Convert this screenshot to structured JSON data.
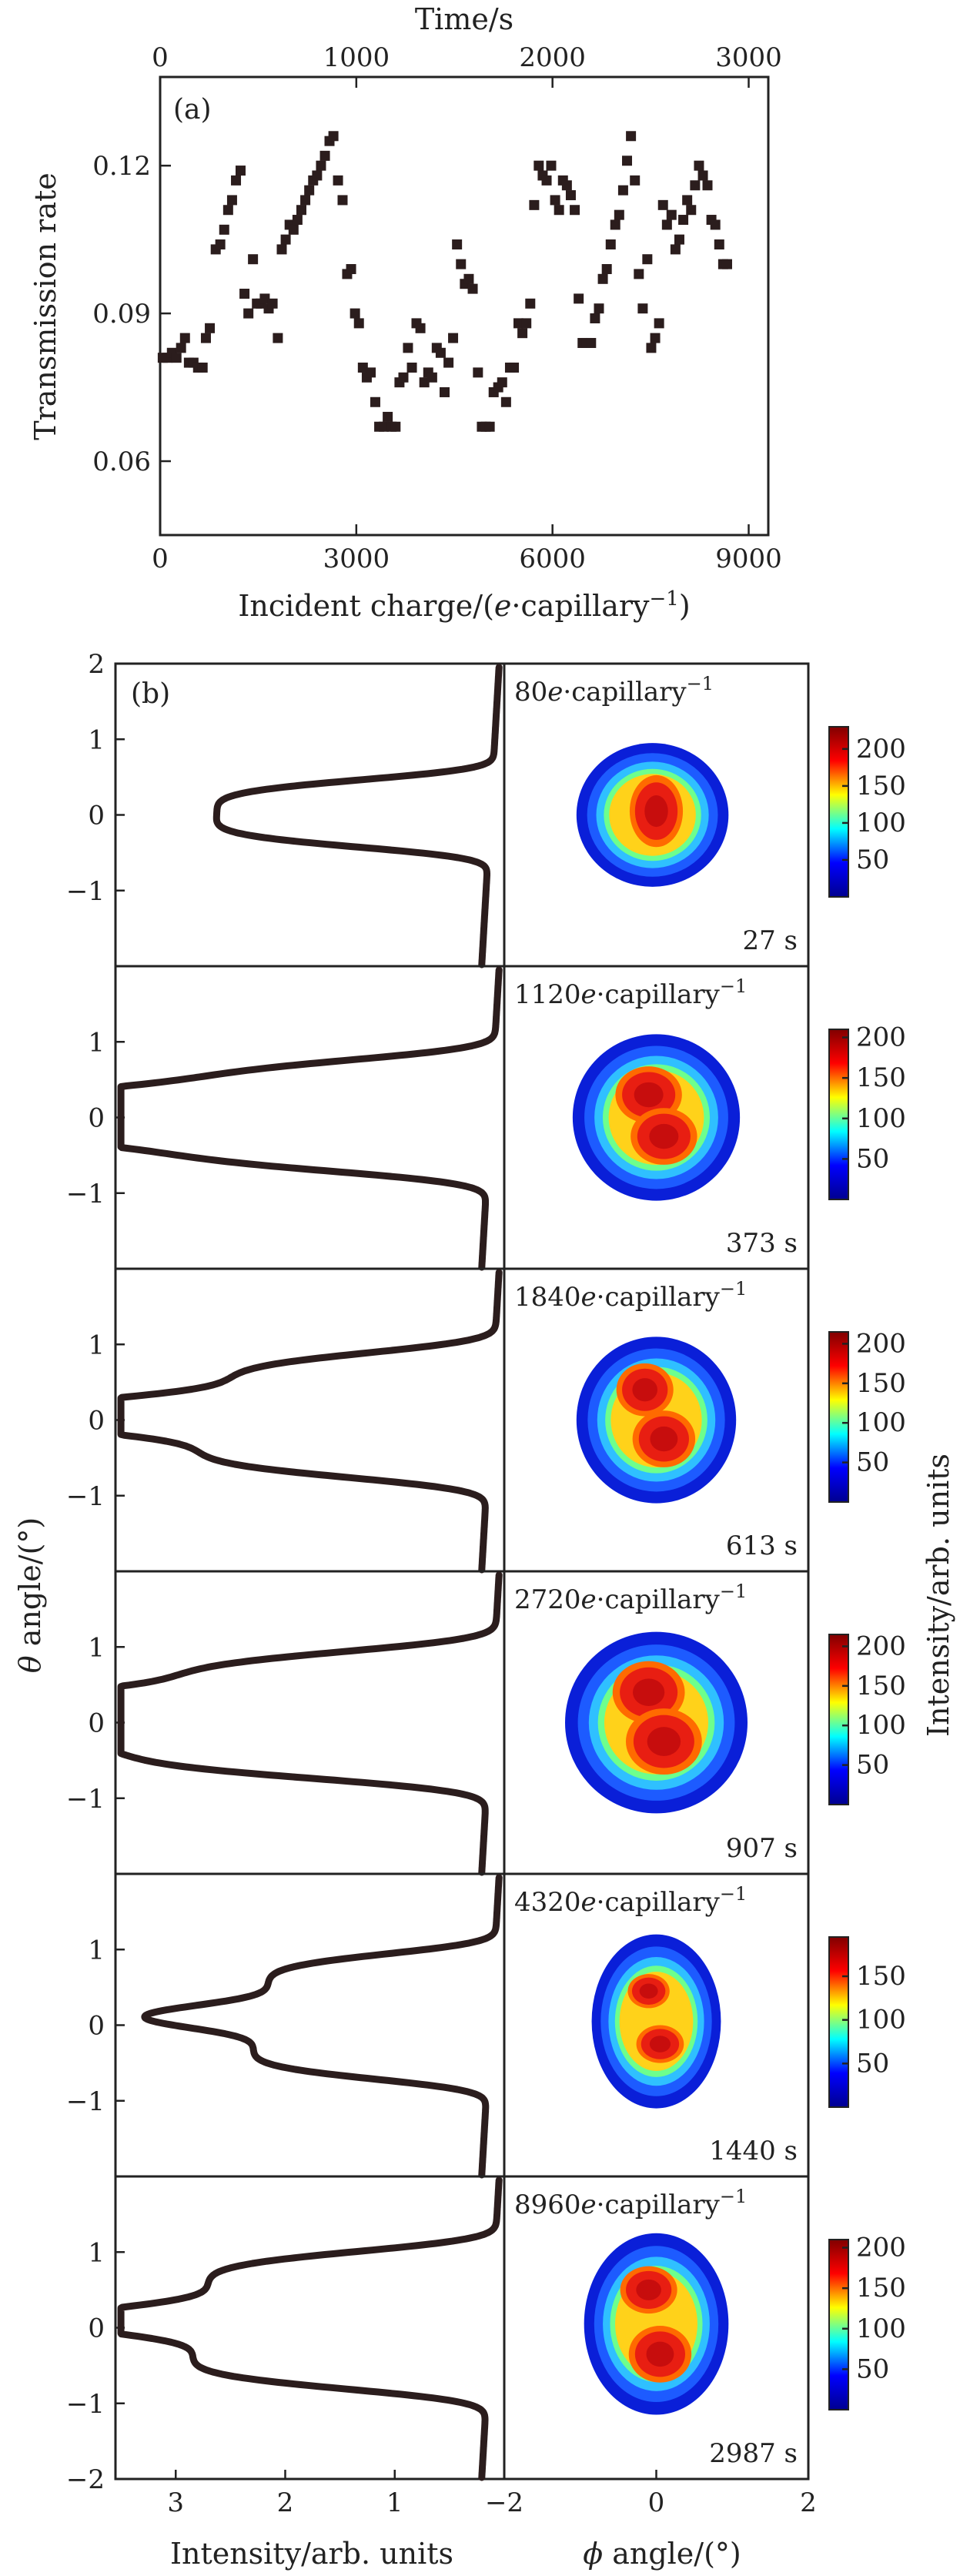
{
  "chart_data": [
    {
      "panel": "(a)",
      "type": "scatter",
      "xlabel": "Incident charge/(e·capillary⁻¹)",
      "x2label": "Time/s",
      "ylabel": "Transmission rate",
      "xlim": [
        0,
        9300
      ],
      "x2lim": [
        0,
        3100
      ],
      "ylim": [
        0.045,
        0.138
      ],
      "xticks": [
        "0",
        "3000",
        "6000",
        "9000"
      ],
      "x2ticks": [
        "0",
        "1000",
        "2000",
        "3000"
      ],
      "yticks": [
        "0.06",
        "0.09",
        "0.12"
      ],
      "marker_color": "#2b1d1d",
      "points": [
        [
          40,
          0.081
        ],
        [
          110,
          0.081
        ],
        [
          180,
          0.082
        ],
        [
          250,
          0.081
        ],
        [
          320,
          0.083
        ],
        [
          380,
          0.085
        ],
        [
          440,
          0.08
        ],
        [
          510,
          0.08
        ],
        [
          580,
          0.079
        ],
        [
          650,
          0.079
        ],
        [
          700,
          0.085
        ],
        [
          760,
          0.087
        ],
        [
          850,
          0.103
        ],
        [
          920,
          0.104
        ],
        [
          980,
          0.107
        ],
        [
          1040,
          0.111
        ],
        [
          1100,
          0.113
        ],
        [
          1160,
          0.117
        ],
        [
          1230,
          0.119
        ],
        [
          1290,
          0.094
        ],
        [
          1350,
          0.09
        ],
        [
          1420,
          0.101
        ],
        [
          1480,
          0.092
        ],
        [
          1540,
          0.092
        ],
        [
          1600,
          0.093
        ],
        [
          1660,
          0.091
        ],
        [
          1720,
          0.092
        ],
        [
          1800,
          0.085
        ],
        [
          1860,
          0.103
        ],
        [
          1920,
          0.105
        ],
        [
          1980,
          0.108
        ],
        [
          2040,
          0.107
        ],
        [
          2100,
          0.109
        ],
        [
          2160,
          0.111
        ],
        [
          2220,
          0.113
        ],
        [
          2280,
          0.115
        ],
        [
          2340,
          0.117
        ],
        [
          2400,
          0.118
        ],
        [
          2460,
          0.12
        ],
        [
          2520,
          0.122
        ],
        [
          2590,
          0.125
        ],
        [
          2650,
          0.126
        ],
        [
          2720,
          0.117
        ],
        [
          2790,
          0.113
        ],
        [
          2860,
          0.098
        ],
        [
          2920,
          0.099
        ],
        [
          2980,
          0.09
        ],
        [
          3040,
          0.088
        ],
        [
          3100,
          0.079
        ],
        [
          3160,
          0.077
        ],
        [
          3220,
          0.078
        ],
        [
          3290,
          0.072
        ],
        [
          3350,
          0.067
        ],
        [
          3420,
          0.067
        ],
        [
          3480,
          0.069
        ],
        [
          3540,
          0.067
        ],
        [
          3600,
          0.067
        ],
        [
          3660,
          0.076
        ],
        [
          3720,
          0.077
        ],
        [
          3790,
          0.083
        ],
        [
          3850,
          0.079
        ],
        [
          3920,
          0.088
        ],
        [
          3980,
          0.087
        ],
        [
          4040,
          0.076
        ],
        [
          4100,
          0.078
        ],
        [
          4160,
          0.077
        ],
        [
          4230,
          0.083
        ],
        [
          4290,
          0.082
        ],
        [
          4350,
          0.074
        ],
        [
          4410,
          0.08
        ],
        [
          4480,
          0.085
        ],
        [
          4540,
          0.104
        ],
        [
          4600,
          0.1
        ],
        [
          4660,
          0.096
        ],
        [
          4720,
          0.097
        ],
        [
          4780,
          0.095
        ],
        [
          4860,
          0.078
        ],
        [
          4920,
          0.067
        ],
        [
          4980,
          0.067
        ],
        [
          5040,
          0.067
        ],
        [
          5100,
          0.074
        ],
        [
          5170,
          0.075
        ],
        [
          5230,
          0.076
        ],
        [
          5290,
          0.072
        ],
        [
          5350,
          0.079
        ],
        [
          5410,
          0.079
        ],
        [
          5480,
          0.088
        ],
        [
          5540,
          0.086
        ],
        [
          5600,
          0.088
        ],
        [
          5660,
          0.092
        ],
        [
          5720,
          0.112
        ],
        [
          5790,
          0.12
        ],
        [
          5850,
          0.118
        ],
        [
          5910,
          0.117
        ],
        [
          5980,
          0.12
        ],
        [
          6040,
          0.113
        ],
        [
          6100,
          0.111
        ],
        [
          6160,
          0.117
        ],
        [
          6220,
          0.116
        ],
        [
          6280,
          0.114
        ],
        [
          6340,
          0.111
        ],
        [
          6400,
          0.093
        ],
        [
          6460,
          0.084
        ],
        [
          6520,
          0.084
        ],
        [
          6590,
          0.084
        ],
        [
          6650,
          0.089
        ],
        [
          6710,
          0.091
        ],
        [
          6770,
          0.097
        ],
        [
          6830,
          0.099
        ],
        [
          6890,
          0.104
        ],
        [
          6960,
          0.108
        ],
        [
          7020,
          0.11
        ],
        [
          7080,
          0.115
        ],
        [
          7140,
          0.121
        ],
        [
          7200,
          0.126
        ],
        [
          7260,
          0.117
        ],
        [
          7320,
          0.098
        ],
        [
          7380,
          0.091
        ],
        [
          7450,
          0.101
        ],
        [
          7510,
          0.083
        ],
        [
          7570,
          0.085
        ],
        [
          7630,
          0.088
        ],
        [
          7690,
          0.112
        ],
        [
          7750,
          0.108
        ],
        [
          7820,
          0.11
        ],
        [
          7880,
          0.103
        ],
        [
          7940,
          0.105
        ],
        [
          8000,
          0.109
        ],
        [
          8060,
          0.113
        ],
        [
          8120,
          0.111
        ],
        [
          8180,
          0.116
        ],
        [
          8240,
          0.12
        ],
        [
          8300,
          0.118
        ],
        [
          8370,
          0.116
        ],
        [
          8430,
          0.109
        ],
        [
          8490,
          0.108
        ],
        [
          8550,
          0.104
        ],
        [
          8610,
          0.1
        ],
        [
          8670,
          0.1
        ]
      ]
    },
    {
      "panel": "(b)",
      "type": "line",
      "xlabel": "Intensity/arb. units",
      "ylabel": "θ angle/(°)",
      "xlim": [
        3.55,
        0
      ],
      "ylim": [
        -2,
        2
      ],
      "xticks": [
        "3",
        "2",
        "1"
      ],
      "yticks": [
        "1",
        "0",
        "−1"
      ],
      "ytick_top": "2",
      "ytick_bottom": "−2",
      "line_color": "#2b1d1d",
      "series": [
        {
          "row": 1,
          "peak_width": 0.48,
          "peaks": [
            {
              "theta": 0.02,
              "intensity": 2.55
            }
          ]
        },
        {
          "row": 2,
          "peak_width": 0.55,
          "peaks": [
            {
              "theta": 0.25,
              "intensity": 2.8
            },
            {
              "theta": -0.2,
              "intensity": 3.05
            }
          ]
        },
        {
          "row": 3,
          "peak_width": 0.55,
          "peaks": [
            {
              "theta": 0.38,
              "intensity": 2.45
            },
            {
              "theta": -0.25,
              "intensity": 2.7
            }
          ]
        },
        {
          "row": 4,
          "peak_width": 0.58,
          "peaks": [
            {
              "theta": 0.4,
              "intensity": 2.95
            },
            {
              "theta": -0.2,
              "intensity": 3.4
            }
          ]
        },
        {
          "row": 5,
          "peak_width": 0.5,
          "peaks": [
            {
              "theta": 0.48,
              "intensity": 2.1
            },
            {
              "theta": -0.25,
              "intensity": 2.2
            }
          ]
        },
        {
          "row": 6,
          "peak_width": 0.55,
          "peaks": [
            {
              "theta": 0.5,
              "intensity": 2.65
            },
            {
              "theta": -0.3,
              "intensity": 2.75
            }
          ]
        }
      ]
    },
    {
      "panel": "(b)",
      "type": "heatmap",
      "xlabel": "ϕ angle/(°)",
      "colorbar_label": "Intensity/arb. units",
      "xlim": [
        -2,
        2
      ],
      "xticks": [
        "−2",
        "0",
        "2"
      ],
      "colormap": [
        "#00008f",
        "#0000ff",
        "#00ffff",
        "#ffff00",
        "#ff0000",
        "#800000"
      ],
      "rows": [
        {
          "charge": "80",
          "time": "27 s",
          "cbar_ticks": [
            "200",
            "150",
            "100",
            "50"
          ],
          "cbar_max": 230,
          "blob": {
            "phi": -0.05,
            "theta": 0.0,
            "rx": 1.0,
            "ry": 0.95,
            "hot": [
              {
                "phi": 0.0,
                "theta": 0.05,
                "sx": 0.28,
                "sy": 0.38
              }
            ]
          }
        },
        {
          "charge": "1120",
          "time": "373 s",
          "cbar_ticks": [
            "200",
            "150",
            "100",
            "50"
          ],
          "cbar_max": 210,
          "blob": {
            "phi": 0.0,
            "theta": 0.0,
            "rx": 1.1,
            "ry": 1.1,
            "hot": [
              {
                "phi": -0.1,
                "theta": 0.3,
                "sx": 0.35,
                "sy": 0.3
              },
              {
                "phi": 0.1,
                "theta": -0.25,
                "sx": 0.35,
                "sy": 0.3
              }
            ]
          }
        },
        {
          "charge": "1840",
          "time": "613 s",
          "cbar_ticks": [
            "200",
            "150",
            "100",
            "50"
          ],
          "cbar_max": 215,
          "blob": {
            "phi": 0.0,
            "theta": 0.0,
            "rx": 1.05,
            "ry": 1.1,
            "hot": [
              {
                "phi": -0.15,
                "theta": 0.4,
                "sx": 0.3,
                "sy": 0.28
              },
              {
                "phi": 0.1,
                "theta": -0.25,
                "sx": 0.33,
                "sy": 0.3
              }
            ]
          }
        },
        {
          "charge": "2720",
          "time": "907 s",
          "cbar_ticks": [
            "200",
            "150",
            "100",
            "50"
          ],
          "cbar_max": 215,
          "blob": {
            "phi": 0.0,
            "theta": 0.0,
            "rx": 1.2,
            "ry": 1.2,
            "hot": [
              {
                "phi": -0.1,
                "theta": 0.4,
                "sx": 0.38,
                "sy": 0.33
              },
              {
                "phi": 0.1,
                "theta": -0.25,
                "sx": 0.4,
                "sy": 0.35
              }
            ]
          }
        },
        {
          "charge": "4320",
          "time": "1440 s",
          "cbar_ticks": [
            "150",
            "100",
            "50"
          ],
          "cbar_max": 195,
          "blob": {
            "phi": 0.0,
            "theta": 0.05,
            "rx": 0.85,
            "ry": 1.15,
            "hot": [
              {
                "phi": -0.1,
                "theta": 0.45,
                "sx": 0.22,
                "sy": 0.18
              },
              {
                "phi": 0.05,
                "theta": -0.25,
                "sx": 0.25,
                "sy": 0.2
              }
            ]
          }
        },
        {
          "charge": "8960",
          "time": "2987 s",
          "cbar_ticks": [
            "200",
            "150",
            "100",
            "50"
          ],
          "cbar_max": 210,
          "blob": {
            "phi": 0.0,
            "theta": 0.05,
            "rx": 0.95,
            "ry": 1.2,
            "hot": [
              {
                "phi": -0.1,
                "theta": 0.5,
                "sx": 0.3,
                "sy": 0.25
              },
              {
                "phi": 0.05,
                "theta": -0.35,
                "sx": 0.33,
                "sy": 0.3
              }
            ]
          }
        }
      ],
      "charge_suffix_italic": "e",
      "charge_suffix": "·capillary",
      "charge_superscript": "−1"
    }
  ]
}
